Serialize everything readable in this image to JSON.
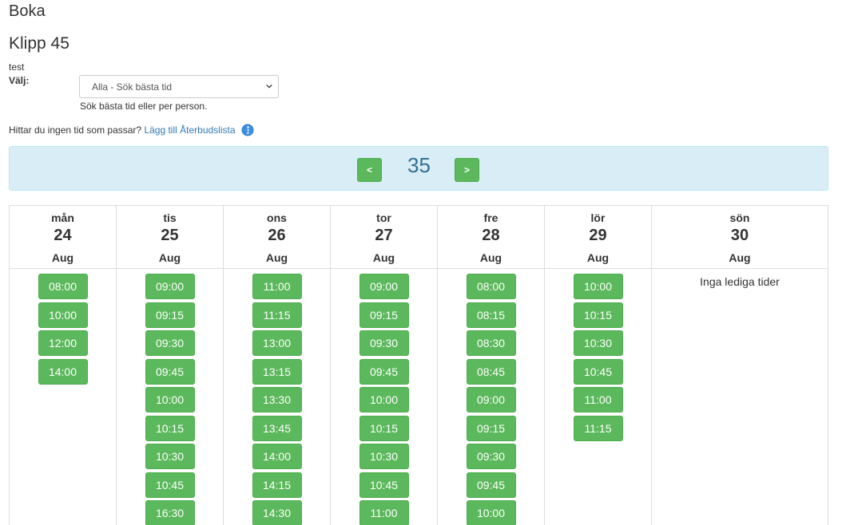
{
  "page": {
    "title": "Boka",
    "service_name": "Klipp 45",
    "note": "test"
  },
  "selector": {
    "label": "Välj:",
    "value": "Alla - Sök bästa tid",
    "help": "Sök bästa tid eller per person."
  },
  "waitlist": {
    "question": "Hittar du ingen tid som passar?",
    "link": "Lägg till Återbudslista",
    "icon": "info-icon"
  },
  "week": {
    "prev_label": "<",
    "next_label": ">",
    "number": "35"
  },
  "colors": {
    "slot_green": "#5cb85c",
    "bar_blue": "#d9edf7",
    "week_text": "#31708f",
    "link": "#337ab7"
  },
  "days": [
    {
      "name": "mån",
      "date": "24",
      "month": "Aug",
      "slots": [
        "08:00",
        "10:00",
        "12:00",
        "14:00"
      ]
    },
    {
      "name": "tis",
      "date": "25",
      "month": "Aug",
      "slots": [
        "09:00",
        "09:15",
        "09:30",
        "09:45",
        "10:00",
        "10:15",
        "10:30",
        "10:45",
        "16:30"
      ]
    },
    {
      "name": "ons",
      "date": "26",
      "month": "Aug",
      "slots": [
        "11:00",
        "11:15",
        "13:00",
        "13:15",
        "13:30",
        "13:45",
        "14:00",
        "14:15",
        "14:30"
      ]
    },
    {
      "name": "tor",
      "date": "27",
      "month": "Aug",
      "slots": [
        "09:00",
        "09:15",
        "09:30",
        "09:45",
        "10:00",
        "10:15",
        "10:30",
        "10:45",
        "11:00"
      ]
    },
    {
      "name": "fre",
      "date": "28",
      "month": "Aug",
      "slots": [
        "08:00",
        "08:15",
        "08:30",
        "08:45",
        "09:00",
        "09:15",
        "09:30",
        "09:45",
        "10:00"
      ]
    },
    {
      "name": "lör",
      "date": "29",
      "month": "Aug",
      "slots": [
        "10:00",
        "10:15",
        "10:30",
        "10:45",
        "11:00",
        "11:15"
      ]
    },
    {
      "name": "sön",
      "date": "30",
      "month": "Aug",
      "slots": [],
      "empty_message": "Inga lediga tider"
    }
  ]
}
